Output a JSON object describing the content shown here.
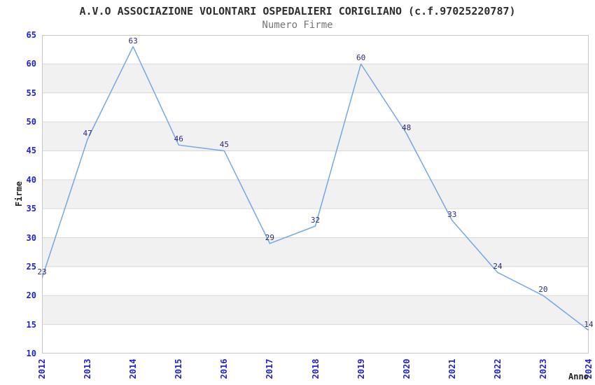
{
  "title": "A.V.O ASSOCIAZIONE VOLONTARI OSPEDALIERI CORIGLIANO (c.f.97025220787)",
  "subtitle": "Numero Firme",
  "chart_data": {
    "type": "line",
    "title": "A.V.O ASSOCIAZIONE VOLONTARI OSPEDALIERI CORIGLIANO (c.f.97025220787)",
    "subtitle": "Numero Firme",
    "xlabel": "Anno",
    "ylabel": "Firme",
    "categories": [
      "2012",
      "2013",
      "2014",
      "2015",
      "2016",
      "2017",
      "2018",
      "2019",
      "2020",
      "2021",
      "2022",
      "2023",
      "2024"
    ],
    "series": [
      {
        "name": "Numero Firme",
        "values": [
          23,
          47,
          63,
          46,
          45,
          29,
          32,
          60,
          48,
          33,
          24,
          20,
          14
        ]
      }
    ],
    "ylim": [
      10,
      65
    ],
    "ytick_step": 5,
    "yticks": [
      10,
      15,
      20,
      25,
      30,
      35,
      40,
      45,
      50,
      55,
      60,
      65
    ],
    "grid": "horizontal",
    "alternating_bands": true,
    "legend_position": "none",
    "data_labels_visible": true
  },
  "colors": {
    "line": "#74A7E6",
    "tick_label": "#2222CC",
    "data_label": "#2B2B78",
    "axis_title": "#222222",
    "title": "#2E2E2E",
    "subtitle": "#757575",
    "band": "#F1F1F1",
    "gridline": "#D9D9D9",
    "border": "#C6C6C6",
    "background": "#FFFFFF"
  }
}
